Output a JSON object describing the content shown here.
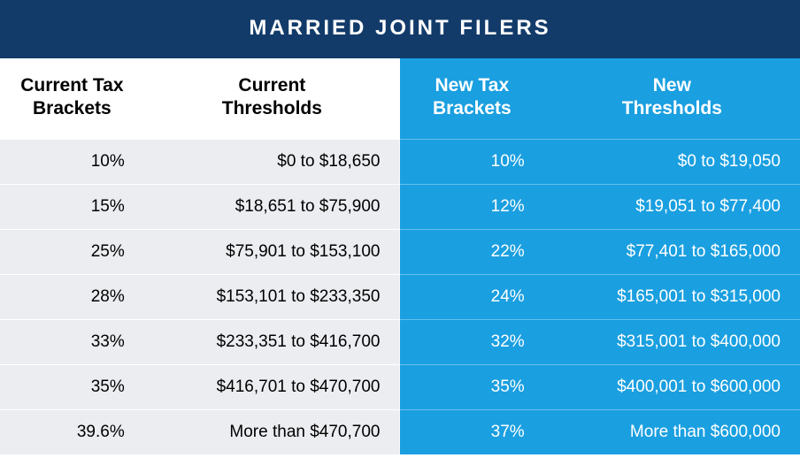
{
  "title": "MARRIED JOINT FILERS",
  "colors": {
    "title_bg": "#123b6a",
    "title_text": "#ffffff",
    "left_header_bg": "#ffffff",
    "left_header_text": "#000000",
    "left_cell_bg": "#ecedf1",
    "left_cell_text": "#000000",
    "right_header_bg": "#1a9fe0",
    "right_header_text": "#ffffff",
    "right_cell_bg": "#1a9fe0",
    "right_cell_text": "#ffffff"
  },
  "typography": {
    "title_fontsize": 24,
    "header_fontsize": 21,
    "cell_fontsize": 19
  },
  "table": {
    "columns": [
      {
        "key": "current_bracket",
        "label": "Current Tax\nBrackets",
        "side": "left"
      },
      {
        "key": "current_threshold",
        "label": "Current\nThresholds",
        "side": "left"
      },
      {
        "key": "new_bracket",
        "label": "New Tax\nBrackets",
        "side": "right"
      },
      {
        "key": "new_threshold",
        "label": "New\nThresholds",
        "side": "right"
      }
    ],
    "rows": [
      {
        "current_bracket": "10%",
        "current_threshold": "$0 to $18,650",
        "new_bracket": "10%",
        "new_threshold": "$0 to $19,050"
      },
      {
        "current_bracket": "15%",
        "current_threshold": "$18,651 to $75,900",
        "new_bracket": "12%",
        "new_threshold": "$19,051 to $77,400"
      },
      {
        "current_bracket": "25%",
        "current_threshold": "$75,901 to $153,100",
        "new_bracket": "22%",
        "new_threshold": "$77,401 to $165,000"
      },
      {
        "current_bracket": "28%",
        "current_threshold": "$153,101 to $233,350",
        "new_bracket": "24%",
        "new_threshold": "$165,001 to $315,000"
      },
      {
        "current_bracket": "33%",
        "current_threshold": "$233,351 to $416,700",
        "new_bracket": "32%",
        "new_threshold": "$315,001 to $400,000"
      },
      {
        "current_bracket": "35%",
        "current_threshold": "$416,701 to $470,700",
        "new_bracket": "35%",
        "new_threshold": "$400,001 to $600,000"
      },
      {
        "current_bracket": "39.6%",
        "current_threshold": "More than $470,700",
        "new_bracket": "37%",
        "new_threshold": "More than $600,000"
      }
    ]
  }
}
